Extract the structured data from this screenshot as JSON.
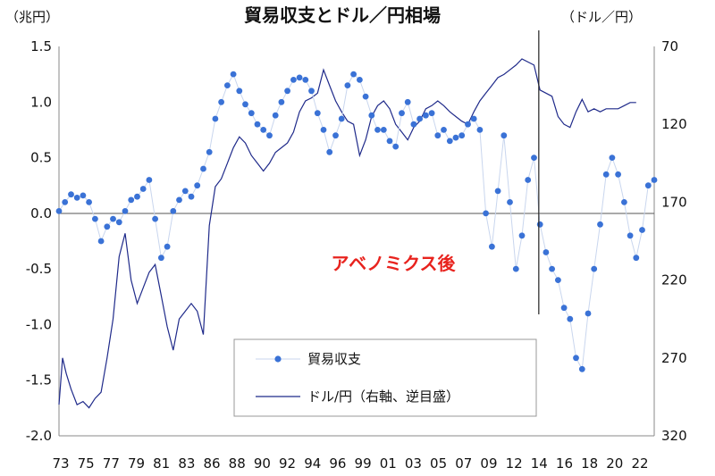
{
  "chart_data": {
    "type": "line",
    "title": "貿易収支とドル／円相場",
    "left_axis_unit": "（兆円）",
    "right_axis_unit": "（ドル／円）",
    "annotation": "アベノミクス後",
    "annotation_year": 2012.9,
    "x_range": [
      1973,
      2022.5
    ],
    "x_tick_labels": [
      "73",
      "75",
      "77",
      "79",
      "81",
      "83",
      "86",
      "88",
      "90",
      "92",
      "94",
      "96",
      "99",
      "01",
      "03",
      "05",
      "07",
      "09",
      "12",
      "14",
      "16",
      "18",
      "20",
      "22"
    ],
    "left_axis": {
      "min": -2.0,
      "max": 1.5,
      "ticks": [
        "1.5",
        "1.0",
        "0.5",
        "0.0",
        "-0.5",
        "-1.0",
        "-1.5",
        "-2.0"
      ]
    },
    "right_axis": {
      "min": 70,
      "max": 320,
      "inverted": true,
      "ticks": [
        "70",
        "120",
        "170",
        "220",
        "270",
        "320"
      ]
    },
    "legend": {
      "entries": [
        "貿易収支",
        "ドル/円（右軸、逆目盛）"
      ],
      "placement": "bottom-center"
    },
    "series": [
      {
        "name": "貿易収支",
        "axis": "left",
        "style": "dots",
        "color": "#3a72d6",
        "x": [
          1973,
          1973.5,
          1974,
          1974.5,
          1975,
          1975.5,
          1976,
          1976.5,
          1977,
          1977.5,
          1978,
          1978.5,
          1979,
          1979.5,
          1980,
          1980.5,
          1981,
          1981.5,
          1982,
          1982.5,
          1983,
          1983.5,
          1984,
          1984.5,
          1985,
          1985.5,
          1986,
          1986.5,
          1987,
          1987.5,
          1988,
          1988.5,
          1989,
          1989.5,
          1990,
          1990.5,
          1991,
          1991.5,
          1992,
          1992.5,
          1993,
          1993.5,
          1994,
          1994.5,
          1995,
          1995.5,
          1996,
          1996.5,
          1997,
          1997.5,
          1998,
          1998.5,
          1999,
          1999.5,
          2000,
          2000.5,
          2001,
          2001.5,
          2002,
          2002.5,
          2003,
          2003.5,
          2004,
          2004.5,
          2005,
          2005.5,
          2006,
          2006.5,
          2007,
          2007.5,
          2008,
          2008.5,
          2009,
          2009.5,
          2010,
          2010.5,
          2011,
          2011.5,
          2012,
          2012.5,
          2013,
          2013.5,
          2014,
          2014.5,
          2015,
          2015.5,
          2016,
          2016.5,
          2017,
          2017.5,
          2018,
          2018.5,
          2019,
          2019.5,
          2020,
          2020.5,
          2021,
          2021.5,
          2022,
          2022.5
        ],
        "values": [
          0.02,
          0.1,
          0.17,
          0.14,
          0.16,
          0.1,
          -0.05,
          -0.25,
          -0.12,
          -0.05,
          -0.08,
          0.02,
          0.12,
          0.15,
          0.22,
          0.3,
          -0.05,
          -0.4,
          -0.3,
          0.02,
          0.12,
          0.2,
          0.15,
          0.25,
          0.4,
          0.55,
          0.85,
          1.0,
          1.15,
          1.25,
          1.1,
          0.98,
          0.9,
          0.8,
          0.75,
          0.7,
          0.88,
          1.0,
          1.1,
          1.2,
          1.22,
          1.2,
          1.1,
          0.9,
          0.75,
          0.55,
          0.7,
          0.85,
          1.15,
          1.25,
          1.2,
          1.05,
          0.88,
          0.75,
          0.75,
          0.65,
          0.6,
          0.9,
          1.0,
          0.8,
          0.85,
          0.88,
          0.9,
          0.7,
          0.75,
          0.65,
          0.68,
          0.7,
          0.8,
          0.85,
          0.75,
          0.0,
          -0.3,
          0.2,
          0.7,
          0.1,
          -0.5,
          -0.2,
          0.3,
          0.5,
          -0.1,
          -0.35,
          -0.5,
          -0.6,
          -0.85,
          -0.95,
          -1.3,
          -1.4,
          -0.9,
          -0.5,
          -0.1,
          0.35,
          0.5,
          0.35,
          0.1,
          -0.2,
          -0.4,
          -0.15,
          0.25,
          0.3
        ]
      },
      {
        "name": "ドル/円（右軸、逆目盛）",
        "axis": "right",
        "style": "line",
        "color": "#1f2a8a",
        "x": [
          1973,
          1973.3,
          1973.6,
          1974,
          1974.5,
          1975,
          1975.5,
          1976,
          1976.5,
          1977,
          1977.5,
          1978,
          1978.5,
          1979,
          1979.5,
          1980,
          1980.5,
          1981,
          1981.5,
          1982,
          1982.5,
          1983,
          1983.5,
          1984,
          1984.5,
          1985,
          1985.5,
          1986,
          1986.5,
          1987,
          1987.5,
          1988,
          1988.5,
          1989,
          1989.5,
          1990,
          1990.5,
          1991,
          1991.5,
          1992,
          1992.5,
          1993,
          1993.5,
          1994,
          1994.5,
          1995,
          1995.5,
          1996,
          1996.5,
          1997,
          1997.5,
          1998,
          1998.5,
          1999,
          1999.5,
          2000,
          2000.5,
          2001,
          2001.5,
          2002,
          2002.5,
          2003,
          2003.5,
          2004,
          2004.5,
          2005,
          2005.5,
          2006,
          2006.5,
          2007,
          2007.5,
          2008,
          2008.5,
          2009,
          2009.5,
          2010,
          2010.5,
          2011,
          2011.5,
          2012,
          2012.5,
          2013,
          2013.5,
          2014,
          2014.5,
          2015,
          2015.5,
          2016,
          2016.5,
          2017,
          2017.5,
          2018,
          2018.5,
          2019,
          2019.5,
          2020,
          2020.5,
          2021
        ],
        "values": [
          300,
          270,
          280,
          290,
          300,
          298,
          302,
          296,
          292,
          270,
          245,
          205,
          190,
          220,
          235,
          225,
          215,
          210,
          230,
          250,
          265,
          245,
          240,
          235,
          240,
          255,
          185,
          160,
          155,
          145,
          135,
          128,
          132,
          140,
          145,
          150,
          145,
          138,
          135,
          132,
          125,
          112,
          105,
          103,
          100,
          85,
          95,
          105,
          112,
          118,
          120,
          140,
          130,
          115,
          108,
          105,
          110,
          120,
          125,
          130,
          122,
          118,
          110,
          108,
          105,
          108,
          112,
          115,
          118,
          120,
          112,
          105,
          100,
          95,
          90,
          88,
          85,
          82,
          78,
          80,
          82,
          98,
          100,
          102,
          115,
          120,
          122,
          112,
          104,
          112,
          110,
          112,
          110,
          110,
          110,
          108,
          106,
          106
        ]
      }
    ]
  }
}
